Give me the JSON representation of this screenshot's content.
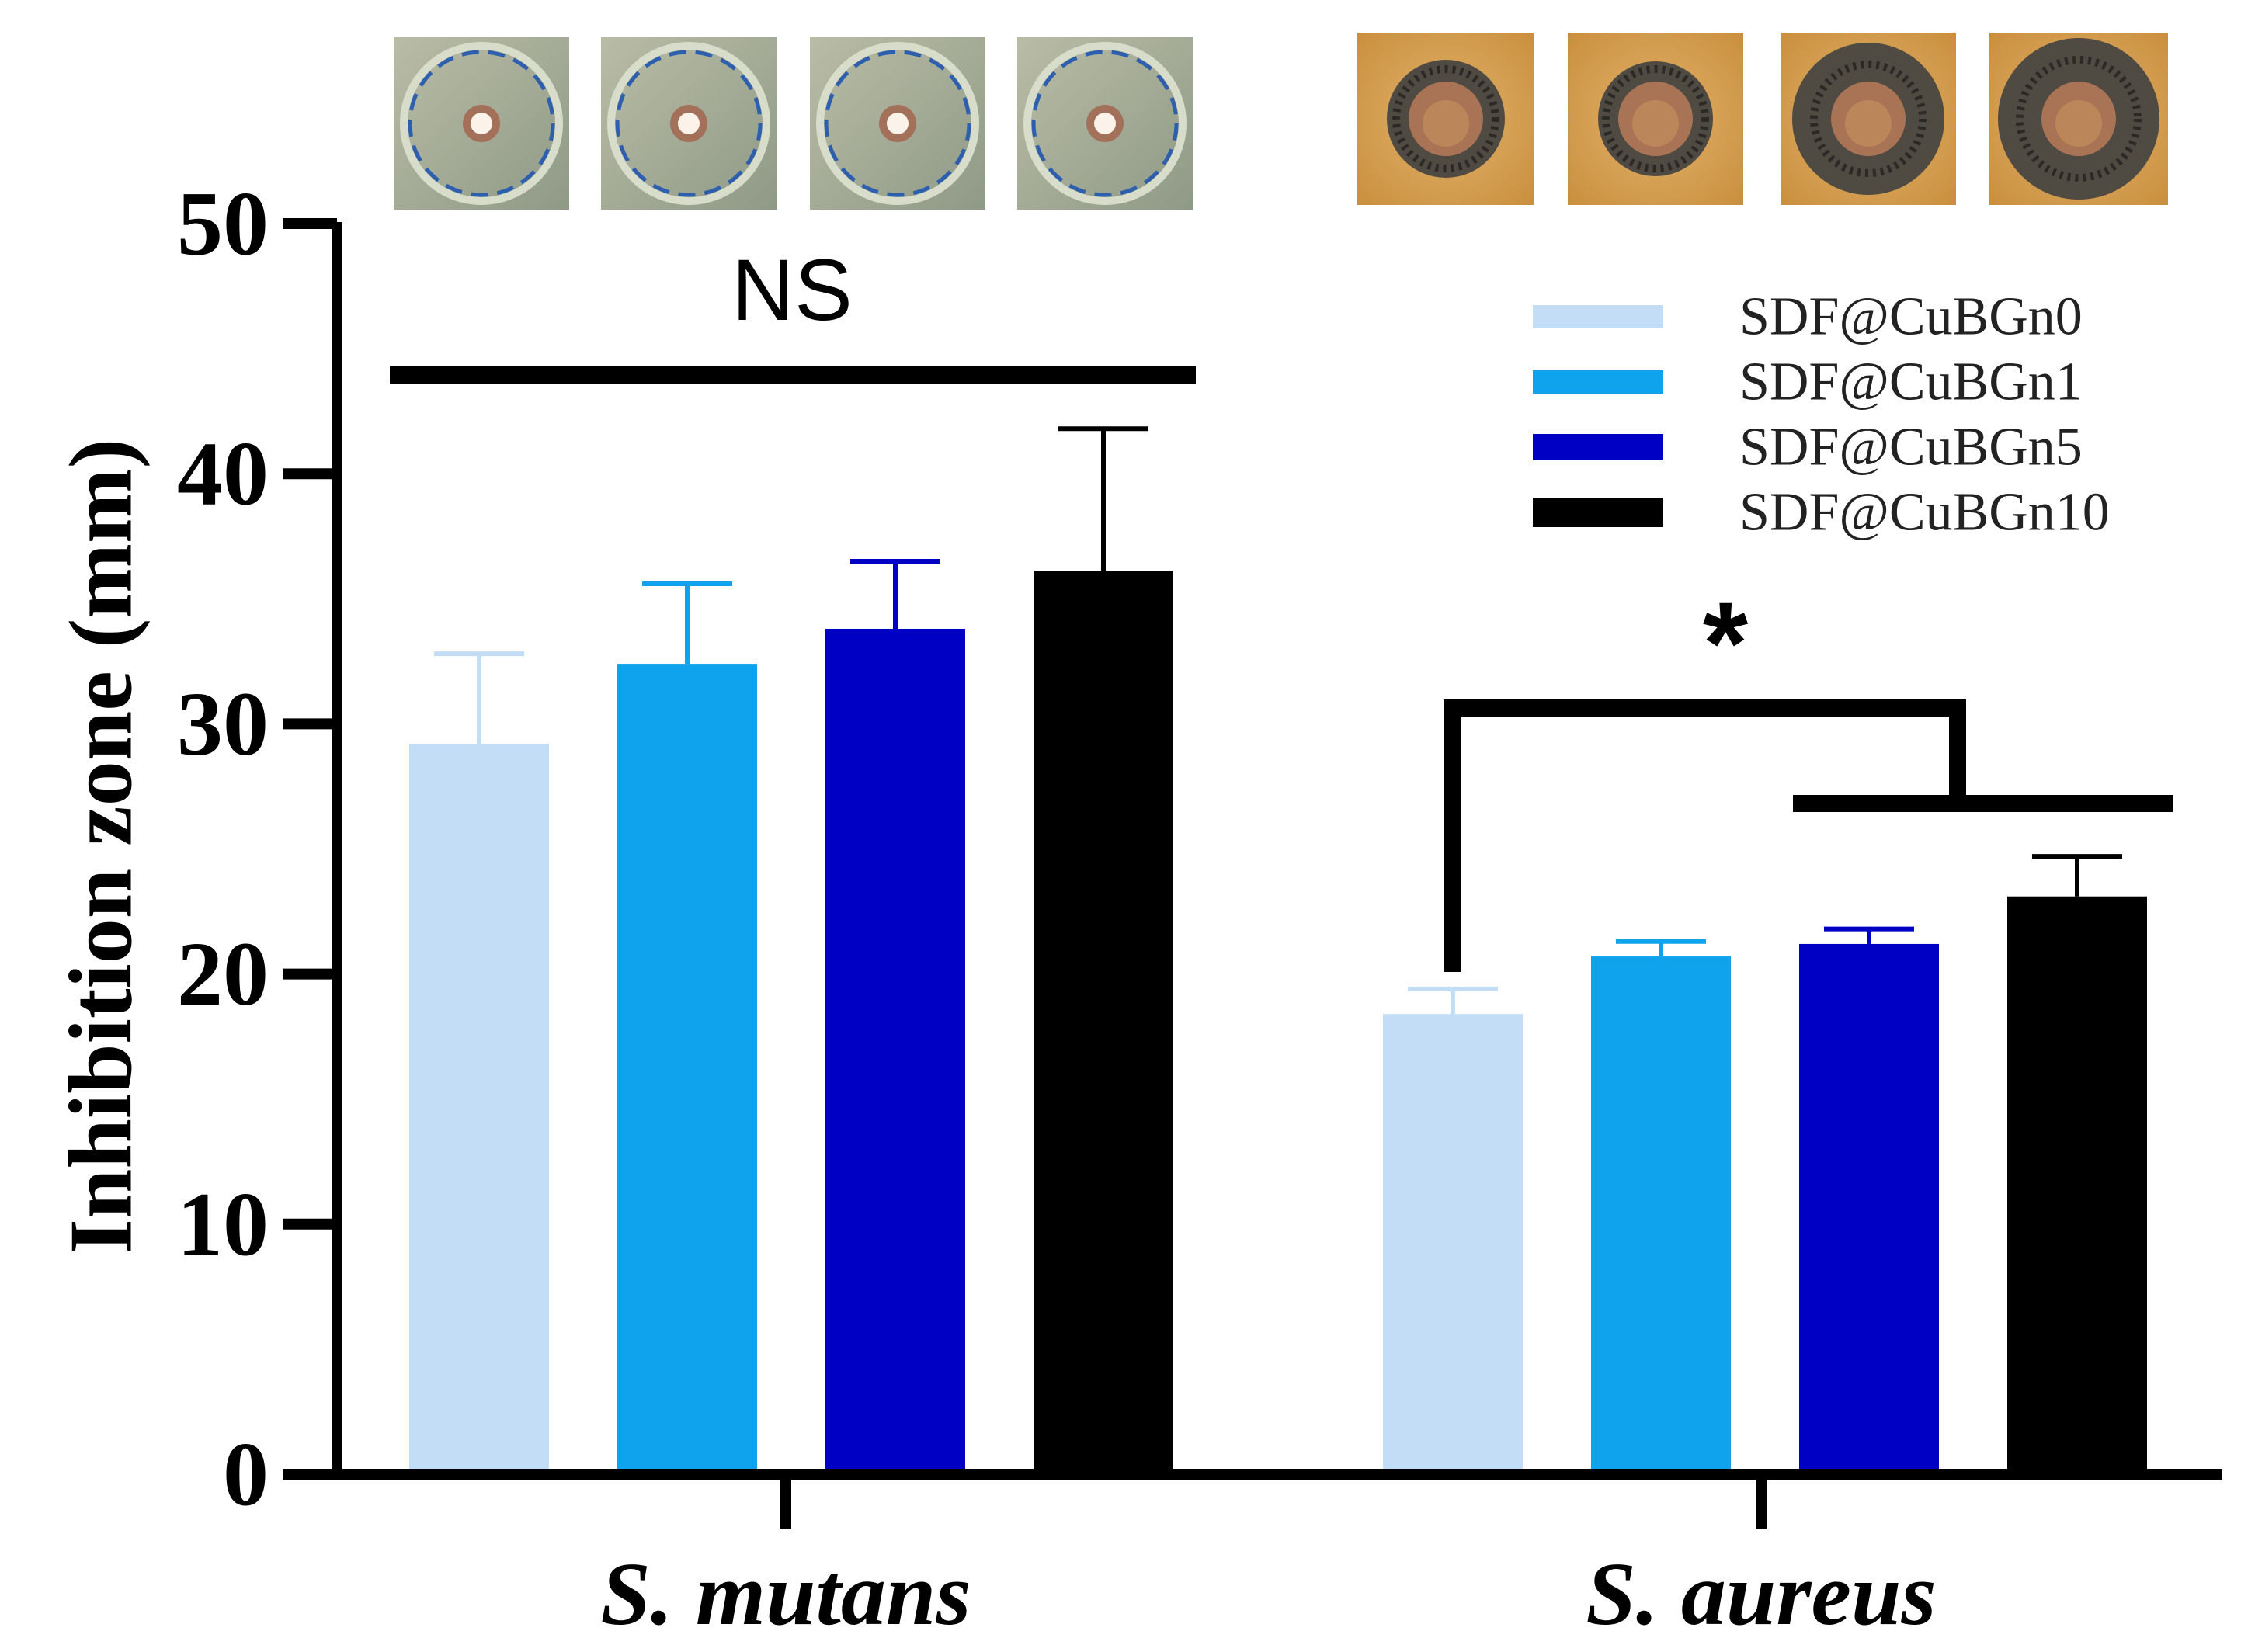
{
  "chart_data": {
    "type": "bar",
    "title": "",
    "xlabel": "",
    "ylabel": "Inhibition zone (mm)",
    "ylim": [
      0,
      50
    ],
    "yticks": [
      "0",
      "10",
      "20",
      "30",
      "40",
      "50"
    ],
    "categories": [
      "S. mutans",
      "S. aureus"
    ],
    "series": [
      {
        "name": "SDF@CuBGn0",
        "color": "#c2ddf5",
        "values": [
          29.2,
          18.4
        ],
        "errors": [
          3.6,
          1.0
        ]
      },
      {
        "name": "SDF@CuBGn1",
        "color": "#0fa3ee",
        "values": [
          32.4,
          20.7
        ],
        "errors": [
          3.2,
          0.6
        ]
      },
      {
        "name": "SDF@CuBGn5",
        "color": "#0000c4",
        "values": [
          33.8,
          21.2
        ],
        "errors": [
          2.7,
          0.6
        ]
      },
      {
        "name": "SDF@CuBGn10",
        "color": "#000000",
        "values": [
          36.1,
          23.1
        ],
        "errors": [
          5.7,
          1.6
        ]
      }
    ],
    "legend_position": "top-right",
    "annotations": {
      "ns_label": "NS",
      "star_label": "*"
    }
  },
  "plate_photos": {
    "s_mutans": [
      "agar-plate-icon",
      "agar-plate-icon",
      "agar-plate-icon",
      "agar-plate-icon"
    ],
    "s_aureus": [
      "agar-plate-icon",
      "agar-plate-icon",
      "agar-plate-icon",
      "agar-plate-icon"
    ]
  }
}
